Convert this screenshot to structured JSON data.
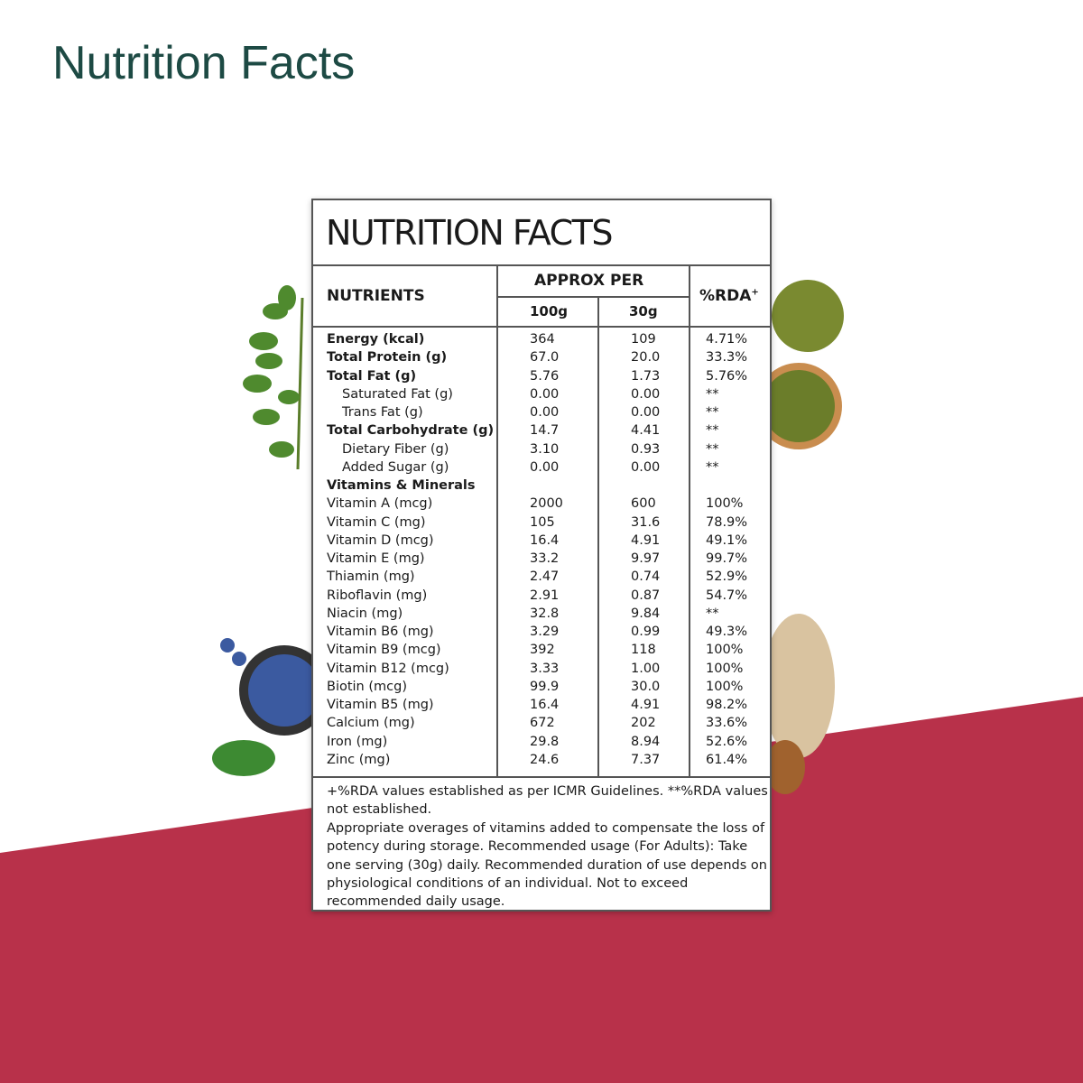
{
  "header": {
    "title": "Nutrition Facts"
  },
  "table": {
    "title": "NUTRITION FACTS",
    "columns": {
      "nutrients": "NUTRIENTS",
      "approx_per": "APPROX PER",
      "per_100": "100g",
      "per_30": "30g",
      "rda": "%RDA",
      "rda_mark": "+"
    },
    "rows": [
      [
        "Energy (kcal)",
        "364",
        "109",
        "4.71%"
      ],
      [
        "Total Protein (g)",
        "67.0",
        "20.0",
        "33.3%"
      ],
      [
        "Total Fat (g)",
        "5.76",
        "1.73",
        "5.76%"
      ],
      [
        "Saturated Fat (g)",
        "0.00",
        "0.00",
        "**"
      ],
      [
        "Trans Fat (g)",
        "0.00",
        "0.00",
        "**"
      ],
      [
        "Total Carbohydrate (g)",
        "14.7",
        "4.41",
        "**"
      ],
      [
        "Dietary Fiber (g)",
        "3.10",
        "0.93",
        "**"
      ],
      [
        "Added Sugar (g)",
        "0.00",
        "0.00",
        "**"
      ],
      [
        "Vitamins & Minerals"
      ],
      [
        "Vitamin A (mcg)",
        "2000",
        "600",
        "100%"
      ],
      [
        "Vitamin C (mg)",
        "105",
        "31.6",
        "78.9%"
      ],
      [
        "Vitamin D (mcg)",
        "16.4",
        "4.91",
        "49.1%"
      ],
      [
        "Vitamin E (mg)",
        "33.2",
        "9.97",
        "99.7%"
      ],
      [
        "Thiamin (mg)",
        "2.47",
        "0.74",
        "52.9%"
      ],
      [
        "Riboflavin (mg)",
        "2.91",
        "0.87",
        "54.7%"
      ],
      [
        "Niacin (mg)",
        "32.8",
        "9.84",
        "**"
      ],
      [
        "Vitamin B6 (mg)",
        "3.29",
        "0.99",
        "49.3%"
      ],
      [
        "Vitamin B9 (mcg)",
        "392",
        "118",
        "100%"
      ],
      [
        "Vitamin B12 (mcg)",
        "3.33",
        "1.00",
        "100%"
      ],
      [
        "Biotin (mcg)",
        "99.9",
        "30.0",
        "100%"
      ],
      [
        "Vitamin B5 (mg)",
        "16.4",
        "4.91",
        "98.2%"
      ],
      [
        "Calcium (mg)",
        "672",
        "202",
        "33.6%"
      ],
      [
        "Iron (mg)",
        "29.8",
        "8.94",
        "52.6%"
      ],
      [
        "Zinc (mg)",
        "24.6",
        "7.37",
        "61.4%"
      ]
    ],
    "footnotes": [
      "+%RDA values established as per ICMR Guidelines. **%RDA values not established.",
      "Appropriate overages of vitamins added to compensate the loss of potency during storage. Recommended usage (For Adults): Take one serving (30g) daily. Recommended duration of use depends on physiological conditions of an individual. Not to exceed recommended daily usage."
    ]
  }
}
